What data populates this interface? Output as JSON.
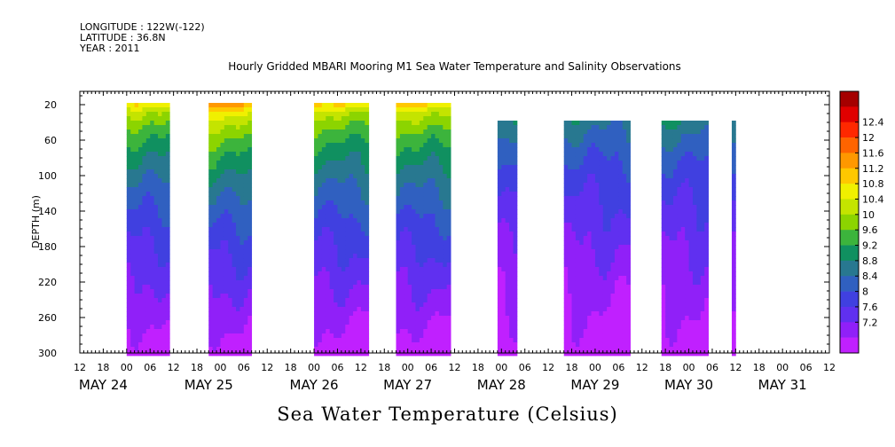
{
  "header": {
    "longitude": "LONGITUDE : 122W(-122)",
    "latitude": "LATITUDE : 36.8N",
    "year": "YEAR : 2011"
  },
  "footer_label": "Sea Water Temperature (Celsius)",
  "chart_data": {
    "type": "heatmap",
    "title": "Hourly Gridded MBARI Mooring M1 Sea Water Temperature and Salinity Observations",
    "ylabel": "DEPTH (m)",
    "xlabel": "",
    "ylim": [
      300,
      5
    ],
    "xlim": [
      "2011-05-23 12:00",
      "2011-05-31 12:00"
    ],
    "y_ticks": [
      20,
      60,
      100,
      140,
      180,
      220,
      260,
      300
    ],
    "x_tick_labels": [
      "12",
      "18",
      "00",
      "06",
      "12",
      "18",
      "00",
      "06",
      "12",
      "18",
      "00",
      "06",
      "12",
      "18",
      "00",
      "06",
      "12",
      "18",
      "00",
      "06",
      "12",
      "18",
      "00",
      "06",
      "12",
      "18",
      "00",
      "06",
      "12",
      "18",
      "00",
      "06",
      "12"
    ],
    "date_labels": [
      "MAY 24",
      "MAY 25",
      "MAY 26",
      "MAY 27",
      "MAY 28",
      "MAY 29",
      "MAY 30",
      "MAY 31"
    ],
    "colorbar": {
      "levels": [
        12.4,
        12,
        11.6,
        11.2,
        10.8,
        10.4,
        10,
        9.6,
        9.2,
        8.8,
        8.4,
        8,
        7.6,
        7.2
      ],
      "colors": [
        "#a50000",
        "#e00000",
        "#ff2800",
        "#ff6400",
        "#ff9800",
        "#ffc800",
        "#f0f000",
        "#c4e400",
        "#8cd400",
        "#3cb43c",
        "#109060",
        "#287890",
        "#3060c0",
        "#4040e0",
        "#6030f0",
        "#9020f8",
        "#c020ff"
      ]
    },
    "data_blocks": [
      {
        "start": "2011-05-24 00:00",
        "end": "2011-05-24 11:00",
        "surface_temp_c": 10.4
      },
      {
        "start": "2011-05-24 21:00",
        "end": "2011-05-25 08:00",
        "surface_temp_c": 10.9
      },
      {
        "start": "2011-05-26 00:00",
        "end": "2011-05-26 14:00",
        "surface_temp_c": 10.5
      },
      {
        "start": "2011-05-26 21:00",
        "end": "2011-05-27 11:00",
        "surface_temp_c": 10.6
      },
      {
        "start": "2011-05-27 23:00",
        "end": "2011-05-28 04:00",
        "surface_temp_c": 9.3
      },
      {
        "start": "2011-05-28 16:00",
        "end": "2011-05-29 09:00",
        "surface_temp_c": 9.3
      },
      {
        "start": "2011-05-29 17:00",
        "end": "2011-05-30 05:00",
        "surface_temp_c": 9.4
      },
      {
        "start": "2011-05-30 11:00",
        "end": "2011-05-30 12:00",
        "surface_temp_c": 9.2
      }
    ],
    "min_value": 7.2,
    "max_value": 12.4
  }
}
